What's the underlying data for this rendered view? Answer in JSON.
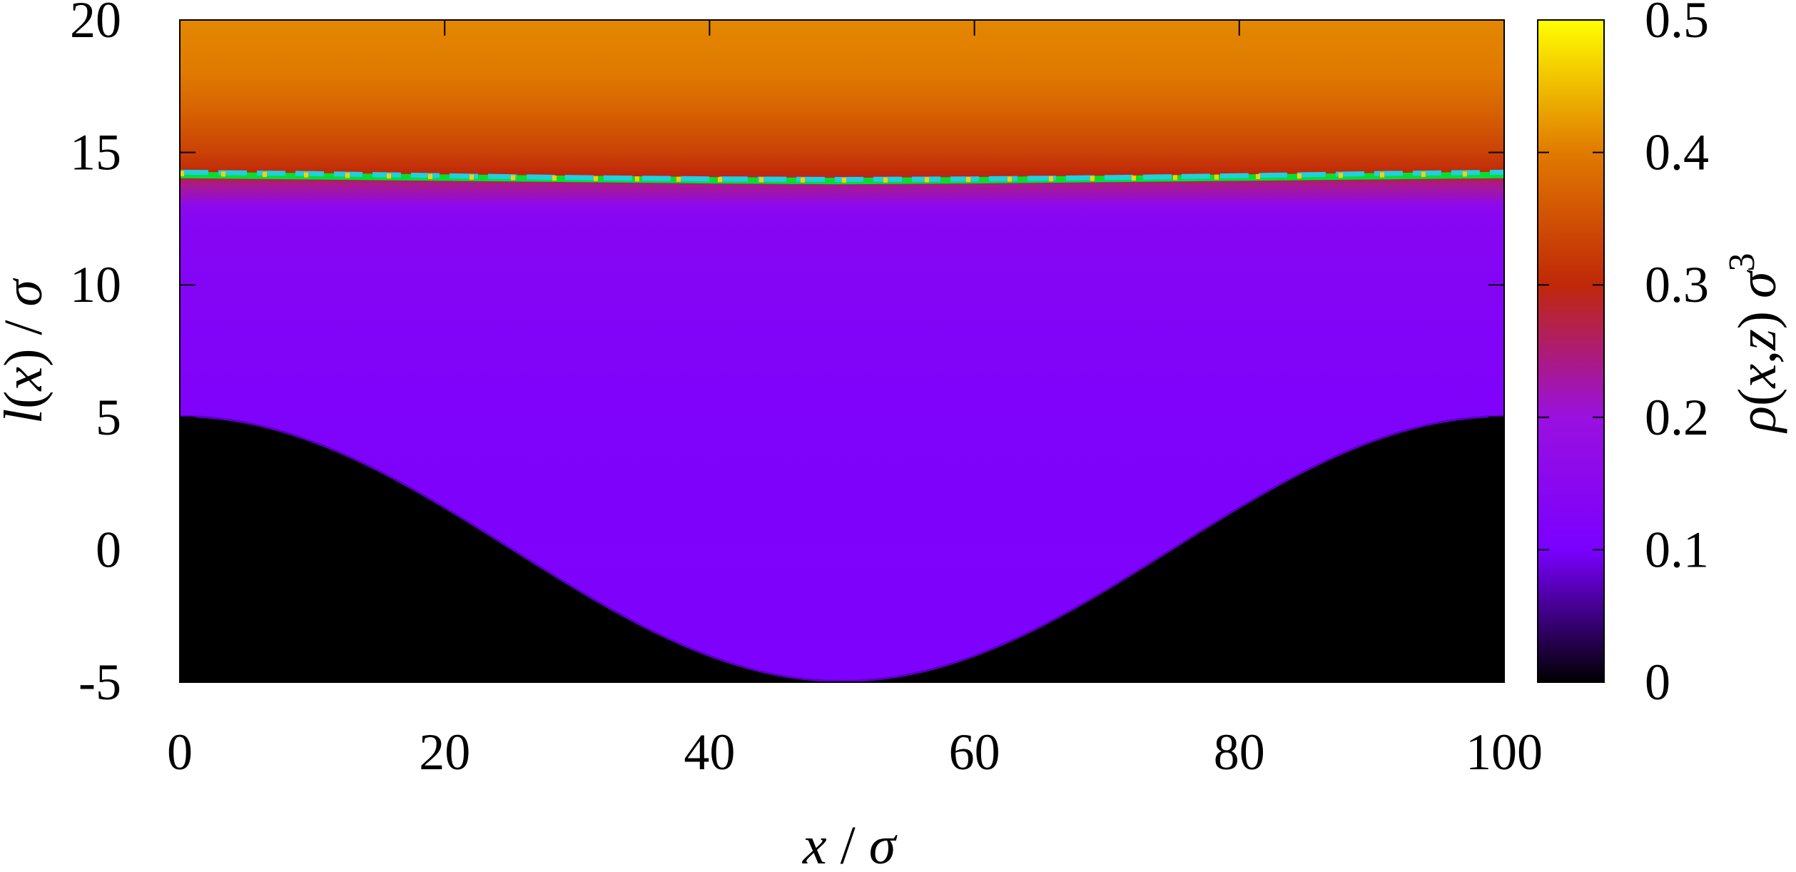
{
  "chart_data": {
    "type": "heatmap",
    "xlabel": {
      "x": "x",
      "sep": " / ",
      "sigma": "σ"
    },
    "ylabel": {
      "l": "l",
      "open": "(",
      "x": "x",
      "close": ")",
      "sep": " / ",
      "sigma": "σ"
    },
    "colorbar_label": {
      "rho": "ρ",
      "open": "(",
      "x": "x",
      "comma": ",",
      "z": "z",
      "close": ")",
      "sigma": "σ",
      "exp": "3"
    },
    "xlim": [
      0,
      100
    ],
    "ylim": [
      -5,
      20
    ],
    "x_ticks": [
      {
        "value": 0,
        "label": "0"
      },
      {
        "value": 20,
        "label": "20"
      },
      {
        "value": 40,
        "label": "40"
      },
      {
        "value": 60,
        "label": "60"
      },
      {
        "value": 80,
        "label": "80"
      },
      {
        "value": 100,
        "label": "100"
      }
    ],
    "y_ticks": [
      {
        "value": -5,
        "label": "-5"
      },
      {
        "value": 0,
        "label": "0"
      },
      {
        "value": 5,
        "label": "5"
      },
      {
        "value": 10,
        "label": "10"
      },
      {
        "value": 15,
        "label": "15"
      },
      {
        "value": 20,
        "label": "20"
      }
    ],
    "colorbar": {
      "range": [
        0,
        0.5
      ],
      "ticks": [
        {
          "value": 0,
          "label": "0"
        },
        {
          "value": 0.1,
          "label": "0.1"
        },
        {
          "value": 0.2,
          "label": "0.2"
        },
        {
          "value": 0.3,
          "label": "0.3"
        },
        {
          "value": 0.4,
          "label": "0.4"
        },
        {
          "value": 0.5,
          "label": "0.5"
        }
      ],
      "colormap": [
        {
          "value": 0.0,
          "color": "#000000"
        },
        {
          "value": 0.1,
          "color": "#7a00ff"
        },
        {
          "value": 0.2,
          "color": "#9a10e0"
        },
        {
          "value": 0.3,
          "color": "#c02808"
        },
        {
          "value": 0.4,
          "color": "#e07a00"
        },
        {
          "value": 0.5,
          "color": "#ffff00"
        }
      ]
    },
    "substrate": {
      "description_shape": "cosine wall",
      "max_height": 5,
      "min_height": -5,
      "period": 100,
      "minimum_at_x": 50,
      "color": "#000000"
    },
    "density_profile": [
      {
        "z_above_wall": 0.0,
        "density": 0.11
      },
      {
        "z_above_wall": 5.0,
        "density": 0.115
      },
      {
        "z_above_wall": 8.0,
        "density": 0.125
      },
      {
        "z_above_wall": 13.5,
        "density": 0.14
      }
    ],
    "liquid_density_profile": [
      {
        "z": 13.0,
        "density": 0.16
      },
      {
        "z": 13.8,
        "density": 0.24
      },
      {
        "z": 14.2,
        "density": 0.3
      },
      {
        "z": 15.0,
        "density": 0.33
      },
      {
        "z": 16.5,
        "density": 0.37
      },
      {
        "z": 18.0,
        "density": 0.4
      },
      {
        "z": 20.0,
        "density": 0.41
      }
    ],
    "interface_lines": [
      {
        "style": "solid",
        "color": "#00e030",
        "points": [
          [
            0,
            14.15
          ],
          [
            10,
            14.1
          ],
          [
            20,
            14.05
          ],
          [
            30,
            14.0
          ],
          [
            40,
            13.95
          ],
          [
            50,
            13.92
          ],
          [
            60,
            13.95
          ],
          [
            70,
            14.0
          ],
          [
            80,
            14.05
          ],
          [
            90,
            14.1
          ],
          [
            100,
            14.15
          ]
        ]
      },
      {
        "style": "dashed",
        "color": "#20d0e0",
        "points": [
          [
            0,
            14.25
          ],
          [
            10,
            14.2
          ],
          [
            20,
            14.12
          ],
          [
            30,
            14.05
          ],
          [
            40,
            14.0
          ],
          [
            50,
            13.98
          ],
          [
            60,
            14.0
          ],
          [
            70,
            14.05
          ],
          [
            80,
            14.12
          ],
          [
            90,
            14.2
          ],
          [
            100,
            14.25
          ]
        ]
      },
      {
        "style": "dotted",
        "color": "#ffd000",
        "points": [
          [
            0,
            14.2
          ],
          [
            10,
            14.15
          ],
          [
            20,
            14.08
          ],
          [
            30,
            14.02
          ],
          [
            40,
            13.98
          ],
          [
            50,
            13.95
          ],
          [
            60,
            13.98
          ],
          [
            70,
            14.02
          ],
          [
            80,
            14.08
          ],
          [
            90,
            14.15
          ],
          [
            100,
            14.2
          ]
        ]
      }
    ]
  }
}
